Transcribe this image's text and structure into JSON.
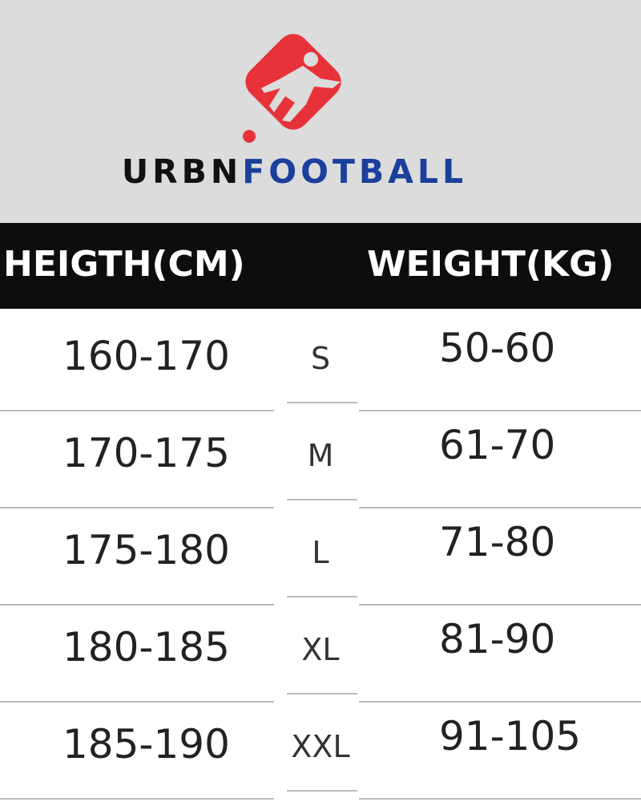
{
  "brand": {
    "part1": "URBN",
    "part2": "FOOTBALL",
    "logo_colors": {
      "red": "#e8323a",
      "blue": "#1b3f9c"
    }
  },
  "table": {
    "headers": {
      "height": "HEIGTH(CM)",
      "weight": "WEIGHT(KG)"
    },
    "rows": [
      {
        "height": "160-170",
        "size": "S",
        "weight": "50-60"
      },
      {
        "height": "170-175",
        "size": "M",
        "weight": "61-70"
      },
      {
        "height": "175-180",
        "size": "L",
        "weight": "71-80"
      },
      {
        "height": "180-185",
        "size": "XL",
        "weight": "81-90"
      },
      {
        "height": "185-190",
        "size": "XXL",
        "weight": "91-105"
      }
    ]
  }
}
